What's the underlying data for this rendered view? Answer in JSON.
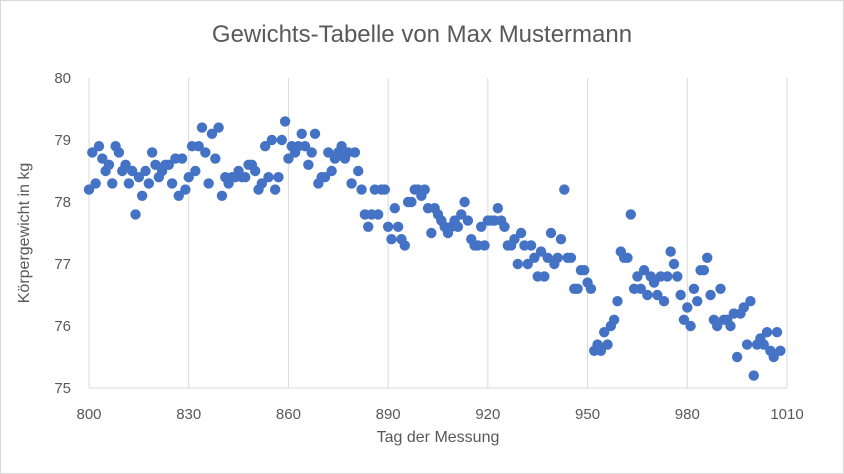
{
  "chart_data": {
    "type": "scatter",
    "title": "Gewichts-Tabelle von Max Mustermann",
    "xlabel": "Tag der Messung",
    "ylabel": "Körpergewicht in kg",
    "xlim": [
      800,
      1010
    ],
    "ylim": [
      75,
      80
    ],
    "xticks": [
      800,
      830,
      860,
      890,
      920,
      950,
      980,
      1010
    ],
    "yticks": [
      75,
      76,
      77,
      78,
      79,
      80
    ],
    "grid": "vertical",
    "legend": "none",
    "marker_color": "#4472c4",
    "series": [
      {
        "points": [
          [
            800,
            78.2
          ],
          [
            801,
            78.8
          ],
          [
            802,
            78.3
          ],
          [
            803,
            78.9
          ],
          [
            804,
            78.7
          ],
          [
            805,
            78.5
          ],
          [
            806,
            78.6
          ],
          [
            807,
            78.3
          ],
          [
            808,
            78.9
          ],
          [
            809,
            78.8
          ],
          [
            810,
            78.5
          ],
          [
            811,
            78.6
          ],
          [
            812,
            78.3
          ],
          [
            813,
            78.5
          ],
          [
            814,
            77.8
          ],
          [
            815,
            78.4
          ],
          [
            816,
            78.1
          ],
          [
            817,
            78.5
          ],
          [
            818,
            78.3
          ],
          [
            819,
            78.8
          ],
          [
            820,
            78.6
          ],
          [
            821,
            78.4
          ],
          [
            822,
            78.5
          ],
          [
            823,
            78.6
          ],
          [
            824,
            78.6
          ],
          [
            825,
            78.3
          ],
          [
            826,
            78.7
          ],
          [
            827,
            78.1
          ],
          [
            828,
            78.7
          ],
          [
            829,
            78.2
          ],
          [
            830,
            78.4
          ],
          [
            831,
            78.9
          ],
          [
            832,
            78.5
          ],
          [
            833,
            78.9
          ],
          [
            834,
            79.2
          ],
          [
            835,
            78.8
          ],
          [
            836,
            78.3
          ],
          [
            837,
            79.1
          ],
          [
            838,
            78.7
          ],
          [
            839,
            79.2
          ],
          [
            840,
            78.1
          ],
          [
            841,
            78.4
          ],
          [
            842,
            78.3
          ],
          [
            843,
            78.4
          ],
          [
            844,
            78.4
          ],
          [
            845,
            78.5
          ],
          [
            846,
            78.4
          ],
          [
            847,
            78.4
          ],
          [
            848,
            78.6
          ],
          [
            849,
            78.6
          ],
          [
            850,
            78.5
          ],
          [
            851,
            78.2
          ],
          [
            852,
            78.3
          ],
          [
            853,
            78.9
          ],
          [
            854,
            78.4
          ],
          [
            855,
            79.0
          ],
          [
            856,
            78.2
          ],
          [
            857,
            78.4
          ],
          [
            858,
            79.0
          ],
          [
            859,
            79.3
          ],
          [
            860,
            78.7
          ],
          [
            861,
            78.9
          ],
          [
            862,
            78.8
          ],
          [
            863,
            78.9
          ],
          [
            864,
            79.1
          ],
          [
            865,
            78.9
          ],
          [
            866,
            78.6
          ],
          [
            867,
            78.8
          ],
          [
            868,
            79.1
          ],
          [
            869,
            78.3
          ],
          [
            870,
            78.4
          ],
          [
            871,
            78.4
          ],
          [
            872,
            78.8
          ],
          [
            873,
            78.5
          ],
          [
            874,
            78.7
          ],
          [
            875,
            78.8
          ],
          [
            876,
            78.9
          ],
          [
            877,
            78.7
          ],
          [
            878,
            78.8
          ],
          [
            879,
            78.3
          ],
          [
            880,
            78.8
          ],
          [
            881,
            78.5
          ],
          [
            882,
            78.2
          ],
          [
            883,
            77.8
          ],
          [
            884,
            77.6
          ],
          [
            885,
            77.8
          ],
          [
            886,
            78.2
          ],
          [
            887,
            77.8
          ],
          [
            888,
            78.2
          ],
          [
            889,
            78.2
          ],
          [
            890,
            77.6
          ],
          [
            891,
            77.4
          ],
          [
            892,
            77.9
          ],
          [
            893,
            77.6
          ],
          [
            894,
            77.4
          ],
          [
            895,
            77.3
          ],
          [
            896,
            78.0
          ],
          [
            897,
            78.0
          ],
          [
            898,
            78.2
          ],
          [
            899,
            78.2
          ],
          [
            900,
            78.1
          ],
          [
            901,
            78.2
          ],
          [
            902,
            77.9
          ],
          [
            903,
            77.5
          ],
          [
            904,
            77.9
          ],
          [
            905,
            77.8
          ],
          [
            906,
            77.7
          ],
          [
            907,
            77.6
          ],
          [
            908,
            77.5
          ],
          [
            909,
            77.6
          ],
          [
            910,
            77.7
          ],
          [
            911,
            77.6
          ],
          [
            912,
            77.8
          ],
          [
            913,
            78.0
          ],
          [
            914,
            77.7
          ],
          [
            915,
            77.4
          ],
          [
            916,
            77.3
          ],
          [
            917,
            77.3
          ],
          [
            918,
            77.6
          ],
          [
            919,
            77.3
          ],
          [
            920,
            77.7
          ],
          [
            921,
            77.7
          ],
          [
            922,
            77.7
          ],
          [
            923,
            77.9
          ],
          [
            924,
            77.7
          ],
          [
            925,
            77.6
          ],
          [
            926,
            77.3
          ],
          [
            927,
            77.3
          ],
          [
            928,
            77.4
          ],
          [
            929,
            77.0
          ],
          [
            930,
            77.5
          ],
          [
            931,
            77.3
          ],
          [
            932,
            77.0
          ],
          [
            933,
            77.3
          ],
          [
            934,
            77.1
          ],
          [
            935,
            76.8
          ],
          [
            936,
            77.2
          ],
          [
            937,
            76.8
          ],
          [
            938,
            77.1
          ],
          [
            939,
            77.5
          ],
          [
            940,
            77.0
          ],
          [
            941,
            77.1
          ],
          [
            942,
            77.4
          ],
          [
            943,
            78.2
          ],
          [
            944,
            77.1
          ],
          [
            945,
            77.1
          ],
          [
            946,
            76.6
          ],
          [
            947,
            76.6
          ],
          [
            948,
            76.9
          ],
          [
            949,
            76.9
          ],
          [
            950,
            76.7
          ],
          [
            951,
            76.6
          ],
          [
            952,
            75.6
          ],
          [
            953,
            75.7
          ],
          [
            954,
            75.6
          ],
          [
            955,
            75.9
          ],
          [
            956,
            75.7
          ],
          [
            957,
            76.0
          ],
          [
            958,
            76.1
          ],
          [
            959,
            76.4
          ],
          [
            960,
            77.2
          ],
          [
            961,
            77.1
          ],
          [
            962,
            77.1
          ],
          [
            963,
            77.8
          ],
          [
            964,
            76.6
          ],
          [
            965,
            76.8
          ],
          [
            966,
            76.6
          ],
          [
            967,
            76.9
          ],
          [
            968,
            76.5
          ],
          [
            969,
            76.8
          ],
          [
            970,
            76.7
          ],
          [
            971,
            76.5
          ],
          [
            972,
            76.8
          ],
          [
            973,
            76.4
          ],
          [
            974,
            76.8
          ],
          [
            975,
            77.2
          ],
          [
            976,
            77.0
          ],
          [
            977,
            76.8
          ],
          [
            978,
            76.5
          ],
          [
            979,
            76.1
          ],
          [
            980,
            76.3
          ],
          [
            981,
            76.0
          ],
          [
            982,
            76.6
          ],
          [
            983,
            76.4
          ],
          [
            984,
            76.9
          ],
          [
            985,
            76.9
          ],
          [
            986,
            77.1
          ],
          [
            987,
            76.5
          ],
          [
            988,
            76.1
          ],
          [
            989,
            76.0
          ],
          [
            990,
            76.6
          ],
          [
            991,
            76.1
          ],
          [
            992,
            76.1
          ],
          [
            993,
            76.0
          ],
          [
            994,
            76.2
          ],
          [
            995,
            75.5
          ],
          [
            996,
            76.2
          ],
          [
            997,
            76.3
          ],
          [
            998,
            75.7
          ],
          [
            999,
            76.4
          ],
          [
            1000,
            75.2
          ],
          [
            1001,
            75.7
          ],
          [
            1002,
            75.8
          ],
          [
            1003,
            75.7
          ],
          [
            1004,
            75.9
          ],
          [
            1005,
            75.6
          ],
          [
            1006,
            75.5
          ],
          [
            1007,
            75.9
          ],
          [
            1008,
            75.6
          ]
        ]
      }
    ]
  }
}
